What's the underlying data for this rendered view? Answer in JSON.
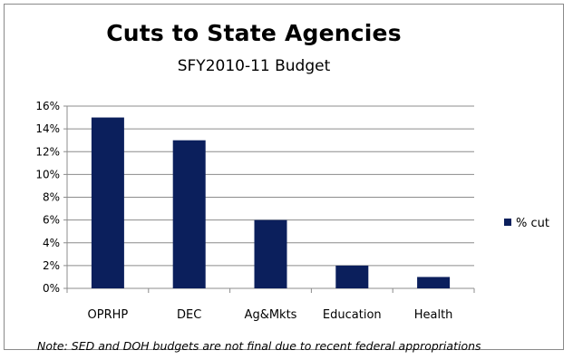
{
  "chart_data": {
    "type": "bar",
    "title": "Cuts to State Agencies",
    "subtitle": "SFY2010-11 Budget",
    "categories": [
      "OPRHP",
      "DEC",
      "Ag&Mkts",
      "Education",
      "Health"
    ],
    "series": [
      {
        "name": "% cut",
        "values": [
          15,
          13,
          6,
          2,
          1
        ],
        "color": "#0b1f5c"
      }
    ],
    "ylim": [
      0,
      16
    ],
    "yticks": [
      0,
      2,
      4,
      6,
      8,
      10,
      12,
      14,
      16
    ],
    "ytick_labels": [
      "0%",
      "2%",
      "4%",
      "6%",
      "8%",
      "10%",
      "12%",
      "14%",
      "16%"
    ],
    "grid": true,
    "legend_position": "right",
    "xlabel": "",
    "ylabel": ""
  },
  "note": "Note: SED and DOH budgets are not final due to recent federal appropriations"
}
